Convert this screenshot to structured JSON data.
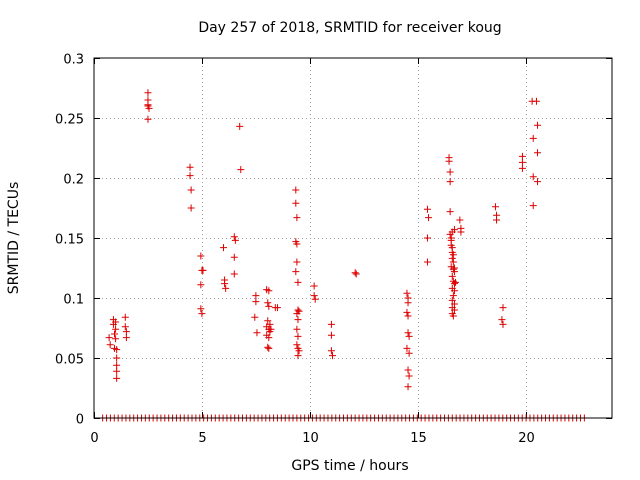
{
  "chart_data": {
    "type": "scatter",
    "title": "Day 257 of 2018, SRMTID for receiver koug",
    "xlabel": "GPS time / hours",
    "ylabel": "SRMTID / TECUs",
    "xlim": [
      0,
      24
    ],
    "ylim": [
      0,
      0.3
    ],
    "grid": true,
    "marker": "+",
    "x_ticks": [
      0,
      5,
      10,
      15,
      20
    ],
    "y_ticks": [
      0,
      0.05,
      0.1,
      0.15,
      0.2,
      0.25,
      0.3
    ],
    "x_tick_labels": [
      "0",
      "5",
      "10",
      "15",
      "20"
    ],
    "y_tick_labels": [
      "0",
      "0.05",
      "0.1",
      "0.15",
      "0.2",
      "0.25",
      "0.3"
    ],
    "colors": {
      "series": "#dd0000",
      "grid": "#a0a0a0",
      "frame": "#000000"
    },
    "series": [
      {
        "name": "SRMTID",
        "points": [
          [
            0.7,
            0.067
          ],
          [
            0.75,
            0.061
          ],
          [
            0.9,
            0.082
          ],
          [
            0.9,
            0.078
          ],
          [
            0.95,
            0.07
          ],
          [
            0.95,
            0.058
          ],
          [
            1.0,
            0.08
          ],
          [
            1.0,
            0.074
          ],
          [
            1.0,
            0.066
          ],
          [
            1.05,
            0.057
          ],
          [
            1.05,
            0.05
          ],
          [
            1.05,
            0.044
          ],
          [
            1.05,
            0.039
          ],
          [
            1.05,
            0.033
          ],
          [
            1.45,
            0.084
          ],
          [
            1.45,
            0.076
          ],
          [
            1.5,
            0.072
          ],
          [
            1.5,
            0.067
          ],
          [
            2.5,
            0.271
          ],
          [
            2.5,
            0.265
          ],
          [
            2.5,
            0.26
          ],
          [
            2.5,
            0.261
          ],
          [
            2.55,
            0.258
          ],
          [
            2.5,
            0.249
          ],
          [
            4.45,
            0.209
          ],
          [
            4.45,
            0.202
          ],
          [
            4.5,
            0.19
          ],
          [
            4.5,
            0.175
          ],
          [
            4.95,
            0.135
          ],
          [
            5.0,
            0.123
          ],
          [
            5.05,
            0.123
          ],
          [
            4.95,
            0.111
          ],
          [
            4.95,
            0.091
          ],
          [
            5.0,
            0.087
          ],
          [
            6.0,
            0.142
          ],
          [
            6.05,
            0.115
          ],
          [
            6.05,
            0.112
          ],
          [
            6.1,
            0.108
          ],
          [
            6.5,
            0.151
          ],
          [
            6.55,
            0.148
          ],
          [
            6.5,
            0.134
          ],
          [
            6.5,
            0.12
          ],
          [
            6.75,
            0.243
          ],
          [
            6.8,
            0.207
          ],
          [
            7.5,
            0.102
          ],
          [
            7.5,
            0.097
          ],
          [
            7.45,
            0.084
          ],
          [
            7.55,
            0.071
          ],
          [
            8.0,
            0.107
          ],
          [
            8.1,
            0.106
          ],
          [
            8.05,
            0.096
          ],
          [
            8.1,
            0.093
          ],
          [
            8.05,
            0.081
          ],
          [
            8.15,
            0.078
          ],
          [
            8.0,
            0.076
          ],
          [
            8.1,
            0.074
          ],
          [
            8.0,
            0.069
          ],
          [
            8.1,
            0.067
          ],
          [
            8.15,
            0.072
          ],
          [
            8.2,
            0.074
          ],
          [
            8.05,
            0.059
          ],
          [
            8.1,
            0.058
          ],
          [
            8.4,
            0.092
          ],
          [
            8.5,
            0.092
          ],
          [
            9.35,
            0.19
          ],
          [
            9.35,
            0.179
          ],
          [
            9.4,
            0.167
          ],
          [
            9.35,
            0.147
          ],
          [
            9.4,
            0.145
          ],
          [
            9.4,
            0.13
          ],
          [
            9.35,
            0.122
          ],
          [
            9.45,
            0.113
          ],
          [
            9.45,
            0.09
          ],
          [
            9.4,
            0.087
          ],
          [
            9.45,
            0.082
          ],
          [
            9.4,
            0.074
          ],
          [
            9.45,
            0.068
          ],
          [
            9.4,
            0.061
          ],
          [
            9.45,
            0.058
          ],
          [
            9.5,
            0.056
          ],
          [
            9.45,
            0.052
          ],
          [
            9.5,
            0.089
          ],
          [
            10.2,
            0.11
          ],
          [
            10.2,
            0.102
          ],
          [
            10.25,
            0.099
          ],
          [
            11.0,
            0.078
          ],
          [
            11.0,
            0.069
          ],
          [
            11.0,
            0.056
          ],
          [
            11.05,
            0.052
          ],
          [
            12.1,
            0.121
          ],
          [
            12.15,
            0.12
          ],
          [
            14.5,
            0.104
          ],
          [
            14.55,
            0.1
          ],
          [
            14.55,
            0.096
          ],
          [
            14.5,
            0.088
          ],
          [
            14.55,
            0.085
          ],
          [
            14.55,
            0.071
          ],
          [
            14.6,
            0.068
          ],
          [
            14.5,
            0.058
          ],
          [
            14.6,
            0.054
          ],
          [
            14.55,
            0.04
          ],
          [
            14.6,
            0.035
          ],
          [
            14.55,
            0.026
          ],
          [
            15.45,
            0.174
          ],
          [
            15.5,
            0.167
          ],
          [
            15.45,
            0.15
          ],
          [
            15.45,
            0.13
          ],
          [
            16.45,
            0.217
          ],
          [
            16.45,
            0.214
          ],
          [
            16.5,
            0.205
          ],
          [
            16.5,
            0.197
          ],
          [
            16.5,
            0.172
          ],
          [
            16.5,
            0.153
          ],
          [
            16.55,
            0.15
          ],
          [
            16.55,
            0.148
          ],
          [
            16.6,
            0.155
          ],
          [
            16.55,
            0.144
          ],
          [
            16.6,
            0.142
          ],
          [
            16.6,
            0.138
          ],
          [
            16.65,
            0.136
          ],
          [
            16.6,
            0.133
          ],
          [
            16.65,
            0.13
          ],
          [
            16.55,
            0.126
          ],
          [
            16.65,
            0.124
          ],
          [
            16.7,
            0.122
          ],
          [
            16.6,
            0.118
          ],
          [
            16.65,
            0.114
          ],
          [
            16.7,
            0.112
          ],
          [
            16.6,
            0.108
          ],
          [
            16.7,
            0.106
          ],
          [
            16.65,
            0.102
          ],
          [
            16.6,
            0.098
          ],
          [
            16.7,
            0.095
          ],
          [
            16.6,
            0.092
          ],
          [
            16.7,
            0.09
          ],
          [
            16.6,
            0.087
          ],
          [
            16.65,
            0.085
          ],
          [
            16.7,
            0.157
          ],
          [
            16.7,
            0.125
          ],
          [
            16.75,
            0.113
          ],
          [
            16.95,
            0.165
          ],
          [
            17.0,
            0.158
          ],
          [
            17.0,
            0.155
          ],
          [
            18.6,
            0.176
          ],
          [
            18.65,
            0.169
          ],
          [
            18.65,
            0.165
          ],
          [
            18.95,
            0.092
          ],
          [
            18.9,
            0.082
          ],
          [
            18.95,
            0.078
          ],
          [
            19.85,
            0.218
          ],
          [
            19.85,
            0.213
          ],
          [
            19.85,
            0.208
          ],
          [
            20.3,
            0.264
          ],
          [
            20.5,
            0.264
          ],
          [
            20.35,
            0.233
          ],
          [
            20.55,
            0.244
          ],
          [
            20.55,
            0.221
          ],
          [
            20.35,
            0.201
          ],
          [
            20.55,
            0.197
          ],
          [
            20.35,
            0.177
          ]
        ],
        "zero_runs": [
          [
            0.4,
            22.8
          ]
        ],
        "zero_step": 0.18
      }
    ]
  }
}
